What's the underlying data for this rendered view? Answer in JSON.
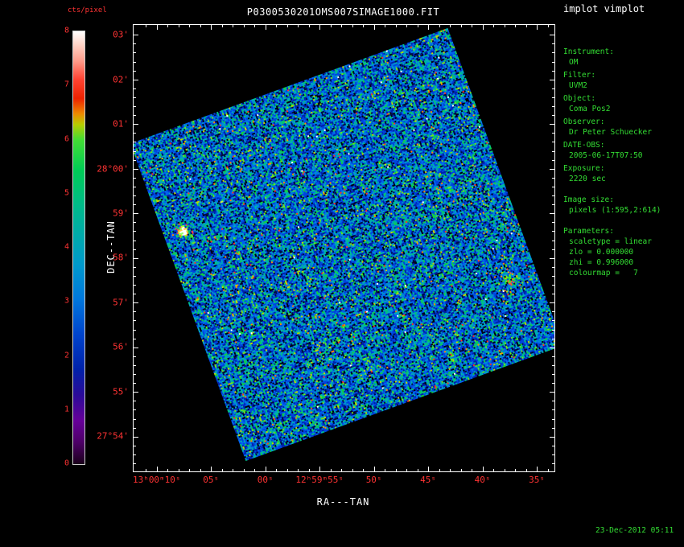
{
  "window": {
    "app_label": "implot vimplot",
    "timestamp": "23-Dec-2012 05:11"
  },
  "chart_data": {
    "type": "heatmap",
    "title": "P0300530201OMS007SIMAGE1000.FIT",
    "xlabel": "RA---TAN",
    "ylabel": "DEC--TAN",
    "grid": false,
    "x_ticks": [
      {
        "label": "13ʰ00ᵐ10ˢ",
        "f": 0.055
      },
      {
        "label": "05ˢ",
        "f": 0.184
      },
      {
        "label": "00ˢ",
        "f": 0.313
      },
      {
        "label": "12ʰ59ᵐ55ˢ",
        "f": 0.442
      },
      {
        "label": "50ˢ",
        "f": 0.571
      },
      {
        "label": "45ˢ",
        "f": 0.7
      },
      {
        "label": "40ˢ",
        "f": 0.829
      },
      {
        "label": "35ˢ",
        "f": 0.958
      }
    ],
    "y_ticks": [
      {
        "label": "03'",
        "f": 0.022
      },
      {
        "label": "02'",
        "f": 0.122
      },
      {
        "label": "01'",
        "f": 0.222
      },
      {
        "label": "28°00'",
        "f": 0.322
      },
      {
        "label": "59'",
        "f": 0.421
      },
      {
        "label": "58'",
        "f": 0.521
      },
      {
        "label": "57'",
        "f": 0.621
      },
      {
        "label": "56'",
        "f": 0.721
      },
      {
        "label": "55'",
        "f": 0.821
      },
      {
        "label": "27°54'",
        "f": 0.921
      }
    ],
    "colorbar": {
      "label": "cts/pixel",
      "tick_labels": [
        "0",
        "1",
        "2",
        "3",
        "4",
        "5",
        "6",
        "7",
        "8"
      ],
      "range": [
        0,
        8
      ],
      "stops_top_to_bottom": [
        [
          "#ffffff",
          0
        ],
        [
          "#ffd5c8",
          0.03
        ],
        [
          "#ff9988",
          0.07
        ],
        [
          "#ff4433",
          0.11
        ],
        [
          "#ee2200",
          0.155
        ],
        [
          "#ee8800",
          0.19
        ],
        [
          "#b8cc00",
          0.215
        ],
        [
          "#44dd33",
          0.25
        ],
        [
          "#00cc55",
          0.32
        ],
        [
          "#00bb88",
          0.4
        ],
        [
          "#00aaaa",
          0.47
        ],
        [
          "#0099cc",
          0.54
        ],
        [
          "#0077dd",
          0.62
        ],
        [
          "#0044cc",
          0.7
        ],
        [
          "#0022aa",
          0.78
        ],
        [
          "#2a0b99",
          0.84
        ],
        [
          "#660099",
          0.9
        ],
        [
          "#4d0066",
          0.95
        ],
        [
          "#1a001a",
          1
        ]
      ]
    },
    "image": {
      "rotation_deg": -20,
      "description": "rotated square OM sky exposure, low-count noise field",
      "background_palette": [
        {
          "c": "#000011",
          "w": 0.05
        },
        {
          "c": "#000d44",
          "w": 0.1
        },
        {
          "c": "#0022aa",
          "w": 0.15
        },
        {
          "c": "#0044dd",
          "w": 0.17
        },
        {
          "c": "#0066ee",
          "w": 0.13
        },
        {
          "c": "#0090d0",
          "w": 0.11
        },
        {
          "c": "#00b0b0",
          "w": 0.11
        },
        {
          "c": "#00c080",
          "w": 0.08
        },
        {
          "c": "#10d040",
          "w": 0.05
        },
        {
          "c": "#70e020",
          "w": 0.025
        },
        {
          "c": "#c8d400",
          "w": 0.012
        },
        {
          "c": "#ff8800",
          "w": 0.005
        },
        {
          "c": "#ff3322",
          "w": 0.004
        },
        {
          "c": "#ffffff",
          "w": 0.001
        }
      ],
      "sources": [
        {
          "fx": 0.056,
          "fy": 0.293,
          "r": 6,
          "kind": "bright",
          "note": "bright white source with green/red halo"
        },
        {
          "fx": 0.918,
          "fy": 0.759,
          "r": 6,
          "kind": "diffuse",
          "note": "faint extended green patch"
        },
        {
          "fx": 0.364,
          "fy": 0.197,
          "r": 1.5,
          "kind": "dot",
          "color": "#ff8800"
        },
        {
          "fx": 0.19,
          "fy": 0.25,
          "r": 1.5,
          "kind": "dot",
          "color": "#ccee44"
        }
      ]
    }
  },
  "info_panel": {
    "lines": [
      {
        "t": "l",
        "text": "Instrument:"
      },
      {
        "t": "v",
        "text": "OM"
      },
      {
        "t": "l",
        "text": "Filter:"
      },
      {
        "t": "v",
        "text": "UVM2"
      },
      {
        "t": "l",
        "text": "Object:"
      },
      {
        "t": "v",
        "text": "Coma Pos2"
      },
      {
        "t": "l",
        "text": "Observer:"
      },
      {
        "t": "v",
        "text": "Dr Peter Schuecker"
      },
      {
        "t": "l",
        "text": "DATE-OBS:"
      },
      {
        "t": "v",
        "text": "2005-06-17T07:50"
      },
      {
        "t": "l",
        "text": "Exposure:"
      },
      {
        "t": "v",
        "text": "2220 sec"
      },
      {
        "t": "g",
        "text": ""
      },
      {
        "t": "l",
        "text": "Image size:"
      },
      {
        "t": "v",
        "text": "pixels (1:595,2:614)"
      },
      {
        "t": "g",
        "text": ""
      },
      {
        "t": "l",
        "text": "Parameters:"
      },
      {
        "t": "v",
        "text": "scaletype = linear"
      },
      {
        "t": "v",
        "text": "zlo = 0.000000"
      },
      {
        "t": "v",
        "text": "zhi = 0.996000"
      },
      {
        "t": "v",
        "text": "colourmap =   7"
      }
    ]
  }
}
